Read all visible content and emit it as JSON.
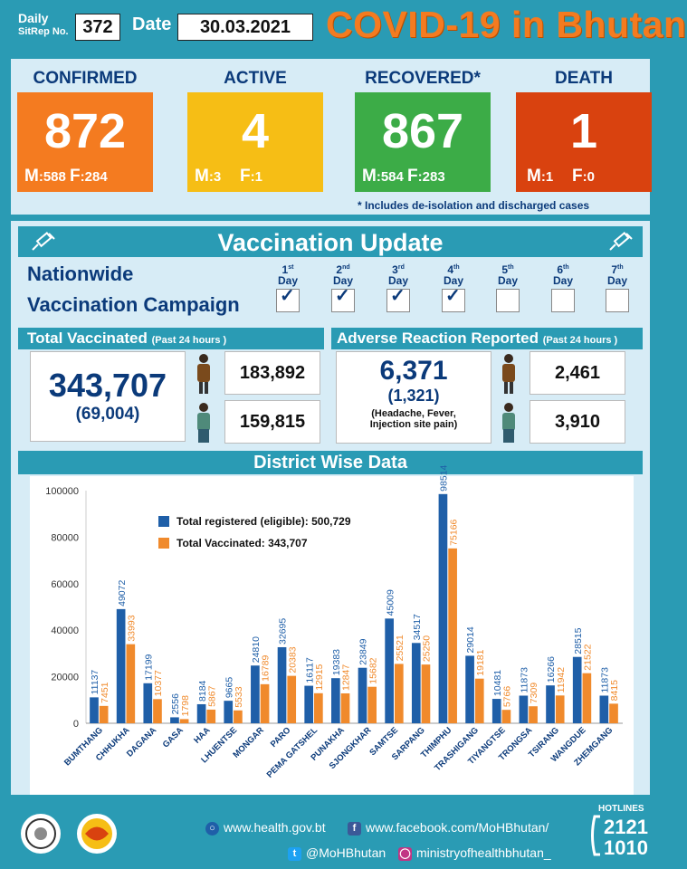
{
  "header": {
    "daily_label_1": "Daily",
    "daily_label_2": "SitRep No.",
    "sitrep_no": "372",
    "date_label": "Date",
    "date_value": "30.03.2021",
    "title": "COVID-19 in Bhutan"
  },
  "stats": [
    {
      "label": "CONFIRMED",
      "value": "872",
      "m_label": "M",
      "m_value": ":588",
      "f_label": "F",
      "f_value": ":284",
      "color": "#f47b20"
    },
    {
      "label": "ACTIVE",
      "value": "4",
      "m_label": "M",
      "m_value": ":3",
      "f_label": "F",
      "f_value": ":1",
      "color": "#f6be15"
    },
    {
      "label": "RECOVERED*",
      "value": "867",
      "m_label": "M",
      "m_value": ":584",
      "f_label": "F",
      "f_value": ":283",
      "color": "#3cac47"
    },
    {
      "label": "DEATH",
      "value": "1",
      "m_label": "M",
      "m_value": ":1",
      "f_label": "F",
      "f_value": ":0",
      "color": "#d9420f"
    }
  ],
  "footnote": "* Includes de-isolation and discharged cases",
  "vaccination": {
    "title": "Vaccination Update",
    "campaign_line1": "Nationwide",
    "campaign_line2": "Vaccination Campaign",
    "days": [
      {
        "num": "1",
        "sup": "st",
        "word": "Day",
        "done": true
      },
      {
        "num": "2",
        "sup": "nd",
        "word": "Day",
        "done": true
      },
      {
        "num": "3",
        "sup": "rd",
        "word": "Day",
        "done": true
      },
      {
        "num": "4",
        "sup": "th",
        "word": "Day",
        "done": true
      },
      {
        "num": "5",
        "sup": "th",
        "word": "Day",
        "done": false
      },
      {
        "num": "6",
        "sup": "th",
        "word": "Day",
        "done": false
      },
      {
        "num": "7",
        "sup": "th",
        "word": "Day",
        "done": false
      }
    ],
    "total_title": "Total Vaccinated",
    "total_sub": "(Past 24 hours )",
    "total_value": "343,707",
    "total_24h": "(69,004)",
    "male_value": "183,892",
    "female_value": "159,815",
    "adverse_title": "Adverse Reaction Reported",
    "adverse_sub": "(Past 24 hours )",
    "adverse_value": "6,371",
    "adverse_24h": "(1,321)",
    "adverse_note_1": "(Headache, Fever,",
    "adverse_note_2": "Injection site pain)",
    "adverse_male": "2,461",
    "adverse_female": "3,910"
  },
  "chart_title": "District Wise Data",
  "chart_data": {
    "type": "bar",
    "categories": [
      "BUMTHANG",
      "CHHUKHA",
      "DAGANA",
      "GASA",
      "HAA",
      "LHUENTSE",
      "MONGAR",
      "PARO",
      "PEMA GATSHEL",
      "PUNAKHA",
      "SJONGKHAR",
      "SAMTSE",
      "SARPANG",
      "THIMPHU",
      "TRASHIGANG",
      "TIYANGTSE",
      "TRONGSA",
      "TSIRANG",
      "WANGDUE",
      "ZHEMGANG"
    ],
    "series": [
      {
        "name": "Total registered (eligible): 500,729",
        "color": "#1f5fa8",
        "values": [
          11137,
          49072,
          17199,
          2556,
          8184,
          9665,
          24810,
          32695,
          16117,
          19383,
          23849,
          45009,
          34517,
          98514,
          29014,
          10481,
          11873,
          16266,
          28515,
          11873
        ]
      },
      {
        "name": "Total Vaccinated: 343,707",
        "color": "#f08a2c",
        "values": [
          7451,
          33993,
          10377,
          1798,
          5867,
          5533,
          16789,
          20383,
          12915,
          12847,
          15682,
          25521,
          25250,
          75166,
          19181,
          5766,
          7309,
          11942,
          21522,
          8415
        ]
      }
    ],
    "ylim": [
      0,
      100000
    ],
    "yticks": [
      "0",
      "20000",
      "40000",
      "60000",
      "80000",
      "100000"
    ],
    "grid": false,
    "legend": "top-left"
  },
  "footer": {
    "website": "www.health.gov.bt",
    "facebook": "www.facebook.com/MoHBhutan/",
    "twitter": "@MoHBhutan",
    "instagram": "ministryofhealthbhutan_",
    "hotlines_label": "HOTLINES",
    "hotline_1": "2121",
    "hotline_2": "1010"
  }
}
